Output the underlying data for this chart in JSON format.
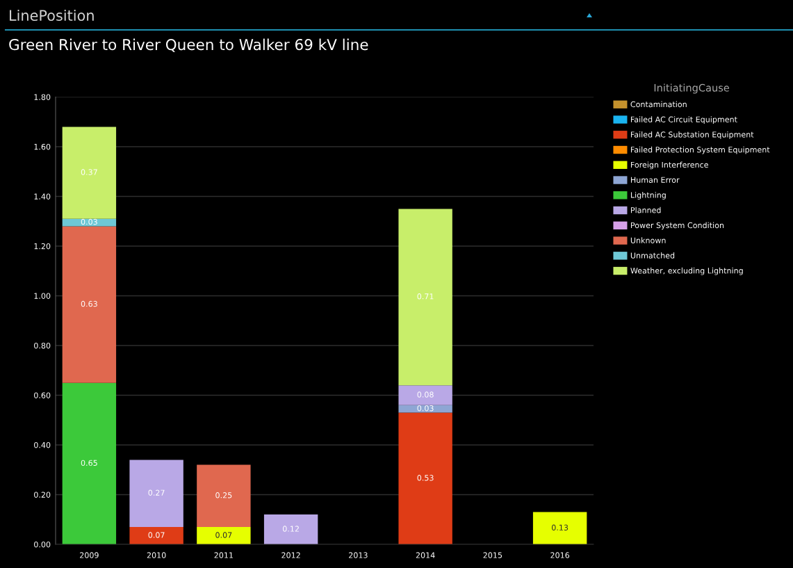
{
  "chart_data": {
    "type": "bar",
    "title": "LinePosition",
    "subtitle": "Green River to River Queen to Walker 69 kV line",
    "legend_title": "InitiatingCause",
    "categories": [
      "2009",
      "2010",
      "2011",
      "2012",
      "2013",
      "2014",
      "2015",
      "2016"
    ],
    "stacked": true,
    "series": [
      {
        "name": "Contamination",
        "color": "#c4922d",
        "values": [
          null,
          null,
          null,
          null,
          null,
          null,
          null,
          null
        ]
      },
      {
        "name": "Failed AC Circuit Equipment",
        "color": "#1ab4f0",
        "values": [
          null,
          null,
          null,
          null,
          null,
          null,
          null,
          null
        ]
      },
      {
        "name": "Failed AC Substation Equipment",
        "color": "#df3c16",
        "values": [
          null,
          0.07,
          null,
          null,
          null,
          0.53,
          null,
          null
        ]
      },
      {
        "name": "Failed Protection System Equipment",
        "color": "#ff8c00",
        "values": [
          null,
          null,
          null,
          null,
          null,
          null,
          null,
          null
        ]
      },
      {
        "name": "Foreign Interference",
        "color": "#e6ff00",
        "values": [
          null,
          null,
          0.07,
          null,
          null,
          null,
          null,
          0.13
        ]
      },
      {
        "name": "Human Error",
        "color": "#8ea6d4",
        "values": [
          null,
          null,
          null,
          null,
          null,
          0.03,
          null,
          null
        ]
      },
      {
        "name": "Lightning",
        "color": "#3cc93a",
        "values": [
          0.65,
          null,
          null,
          null,
          null,
          null,
          null,
          null
        ]
      },
      {
        "name": "Planned",
        "color": "#b9a8e6",
        "values": [
          null,
          0.27,
          null,
          0.12,
          null,
          0.08,
          null,
          null
        ]
      },
      {
        "name": "Power System Condition",
        "color": "#d6a0e8",
        "values": [
          null,
          null,
          null,
          null,
          null,
          null,
          null,
          null
        ]
      },
      {
        "name": "Unknown",
        "color": "#e0684f",
        "values": [
          0.63,
          null,
          0.25,
          null,
          null,
          null,
          null,
          null
        ]
      },
      {
        "name": "Unmatched",
        "color": "#6ec8d6",
        "values": [
          0.03,
          null,
          null,
          null,
          null,
          null,
          null,
          null
        ]
      },
      {
        "name": "Weather, excluding Lightning",
        "color": "#c8ee6a",
        "values": [
          0.37,
          null,
          null,
          null,
          null,
          0.71,
          null,
          null
        ]
      }
    ],
    "ylim": [
      0,
      1.8
    ],
    "yticks": [
      {
        "value": 0,
        "label": "0.00"
      },
      {
        "value": 0.2,
        "label": "0.20"
      },
      {
        "value": 0.4,
        "label": "0.40"
      },
      {
        "value": 0.6,
        "label": "0.60"
      },
      {
        "value": 0.8,
        "label": "0.80"
      },
      {
        "value": 1.0,
        "label": "1.00"
      },
      {
        "value": 1.2,
        "label": "1.20"
      },
      {
        "value": 1.4,
        "label": "1.40"
      },
      {
        "value": 1.6,
        "label": "1.60"
      },
      {
        "value": 1.8,
        "label": "1.80"
      }
    ],
    "grid": "y",
    "legend": "top right",
    "data_labels": true
  }
}
